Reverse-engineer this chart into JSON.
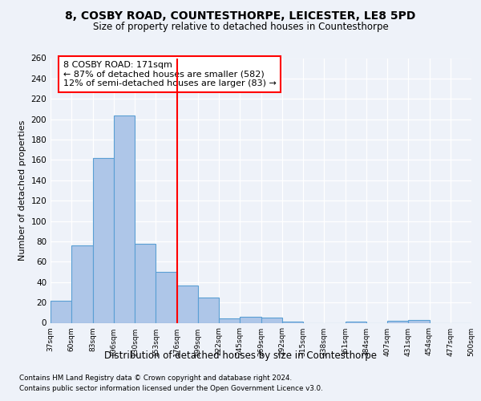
{
  "title1": "8, COSBY ROAD, COUNTESTHORPE, LEICESTER, LE8 5PD",
  "title2": "Size of property relative to detached houses in Countesthorpe",
  "xlabel": "Distribution of detached houses by size in Countesthorpe",
  "ylabel": "Number of detached properties",
  "bar_values": [
    22,
    76,
    162,
    204,
    78,
    50,
    37,
    25,
    4,
    6,
    5,
    1,
    0,
    0,
    1,
    0,
    2,
    3
  ],
  "bin_labels": [
    "37sqm",
    "60sqm",
    "83sqm",
    "106sqm",
    "130sqm",
    "153sqm",
    "176sqm",
    "199sqm",
    "222sqm",
    "245sqm",
    "269sqm",
    "292sqm",
    "315sqm",
    "338sqm",
    "361sqm",
    "384sqm",
    "407sqm",
    "431sqm",
    "454sqm",
    "477sqm",
    "500sqm"
  ],
  "bar_color": "#aec6e8",
  "bar_edge_color": "#5a9fd4",
  "vline_color": "red",
  "annotation_text": "8 COSBY ROAD: 171sqm\n← 87% of detached houses are smaller (582)\n12% of semi-detached houses are larger (83) →",
  "annotation_edge_color": "red",
  "annotation_box_color": "white",
  "ylim": [
    0,
    260
  ],
  "yticks": [
    0,
    20,
    40,
    60,
    80,
    100,
    120,
    140,
    160,
    180,
    200,
    220,
    240,
    260
  ],
  "footer1": "Contains HM Land Registry data © Crown copyright and database right 2024.",
  "footer2": "Contains public sector information licensed under the Open Government Licence v3.0.",
  "bg_color": "#eef2f9"
}
